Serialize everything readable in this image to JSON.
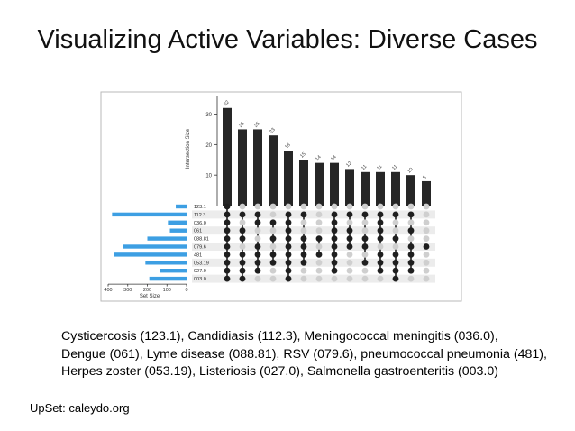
{
  "slide": {
    "title": "Visualizing Active Variables: Diverse Cases",
    "caption_lines": [
      "Cysticercosis (123.1), Candidiasis (112.3), Meningococcal meningitis (036.0),",
      "Dengue (061), Lyme disease (088.81), RSV (079.6), pneumococcal pneumonia (481),",
      "Herpes zoster (053.19), Listeriosis (027.0), Salmonella gastroenteritis (003.0)"
    ],
    "credit": "UpSet: caleydo.org"
  },
  "colors": {
    "bar": "#262626",
    "set_bar": "#3d9fe3",
    "dot_active": "#1f1f1f",
    "dot_inactive": "#cfcfcf",
    "stripe": "#ececec"
  },
  "chart_data": {
    "type": "upset",
    "ylabel": "Intersection Size",
    "xlabel": "Set Size",
    "y_ticks": [
      "10",
      "20",
      "30"
    ],
    "ylim": [
      0,
      34
    ],
    "x_ticks": [
      "400",
      "300",
      "200",
      "100",
      "0"
    ],
    "xlim": [
      0,
      400
    ],
    "sets": [
      "123.1",
      "112.3",
      "036.0",
      "061",
      "088.81",
      "079.6",
      "481",
      "053.19",
      "027.0",
      "003.0"
    ],
    "set_sizes": [
      55,
      380,
      95,
      85,
      200,
      325,
      370,
      210,
      135,
      190
    ],
    "intersections": [
      {
        "size": 32,
        "label": "32",
        "members": [
          0,
          1,
          2,
          3,
          4,
          5,
          6,
          7,
          8,
          9
        ]
      },
      {
        "size": 25,
        "label": "25",
        "members": [
          1,
          3,
          4,
          6,
          7,
          8,
          9
        ]
      },
      {
        "size": 25,
        "label": "25",
        "members": [
          1,
          2,
          5,
          6,
          7,
          8
        ]
      },
      {
        "size": 23,
        "label": "23",
        "members": [
          2,
          4,
          6,
          7
        ]
      },
      {
        "size": 18,
        "label": "18",
        "members": [
          1,
          2,
          3,
          4,
          5,
          6,
          7,
          8,
          9
        ]
      },
      {
        "size": 15,
        "label": "15",
        "members": [
          1,
          4,
          5,
          6,
          7
        ]
      },
      {
        "size": 14,
        "label": "14",
        "members": [
          4,
          6
        ]
      },
      {
        "size": 14,
        "label": "14",
        "members": [
          1,
          2,
          3,
          4,
          5,
          6,
          7,
          8
        ]
      },
      {
        "size": 12,
        "label": "12",
        "members": [
          1,
          3,
          4,
          5
        ]
      },
      {
        "size": 11,
        "label": "11",
        "members": [
          1,
          4,
          5,
          7
        ]
      },
      {
        "size": 11,
        "label": "11",
        "members": [
          1,
          2,
          3,
          4,
          6,
          7,
          8
        ]
      },
      {
        "size": 11,
        "label": "11",
        "members": [
          1,
          4,
          6,
          7,
          8,
          9
        ]
      },
      {
        "size": 10,
        "label": "10",
        "members": [
          1,
          3,
          5,
          6,
          7,
          8
        ]
      },
      {
        "size": 8,
        "label": "8",
        "members": [
          5
        ]
      }
    ]
  }
}
